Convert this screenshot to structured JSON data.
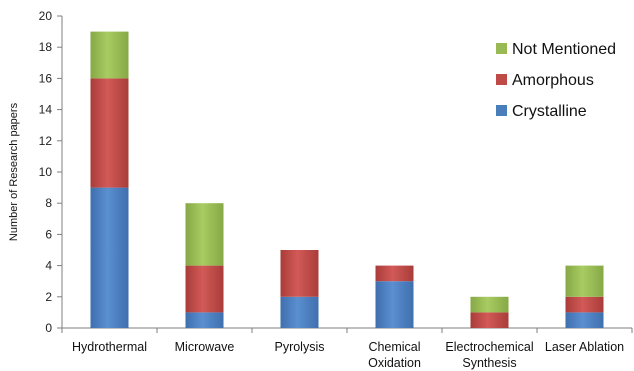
{
  "chart_data": {
    "type": "bar",
    "stacked": true,
    "title": "",
    "xlabel": "",
    "ylabel": "Number of Research papers",
    "ylim": [
      0,
      20
    ],
    "yticks": [
      0,
      2,
      4,
      6,
      8,
      10,
      12,
      14,
      16,
      18,
      20
    ],
    "grid": false,
    "legend_position": "top-right",
    "categories": [
      [
        "Hydrothermal"
      ],
      [
        "Microwave"
      ],
      [
        "Pyrolysis"
      ],
      [
        "Chemical",
        "Oxidation"
      ],
      [
        "Electrochemical",
        "Synthesis"
      ],
      [
        "Laser Ablation"
      ]
    ],
    "series": [
      {
        "name": "Crystalline",
        "color": "#4a7ebb",
        "values": [
          9,
          1,
          2,
          3,
          0,
          1
        ]
      },
      {
        "name": "Amorphous",
        "color": "#be4b48",
        "values": [
          7,
          3,
          3,
          1,
          1,
          1
        ]
      },
      {
        "name": "Not Mentioned",
        "color": "#98b954",
        "values": [
          3,
          4,
          0,
          0,
          1,
          2
        ]
      }
    ]
  }
}
